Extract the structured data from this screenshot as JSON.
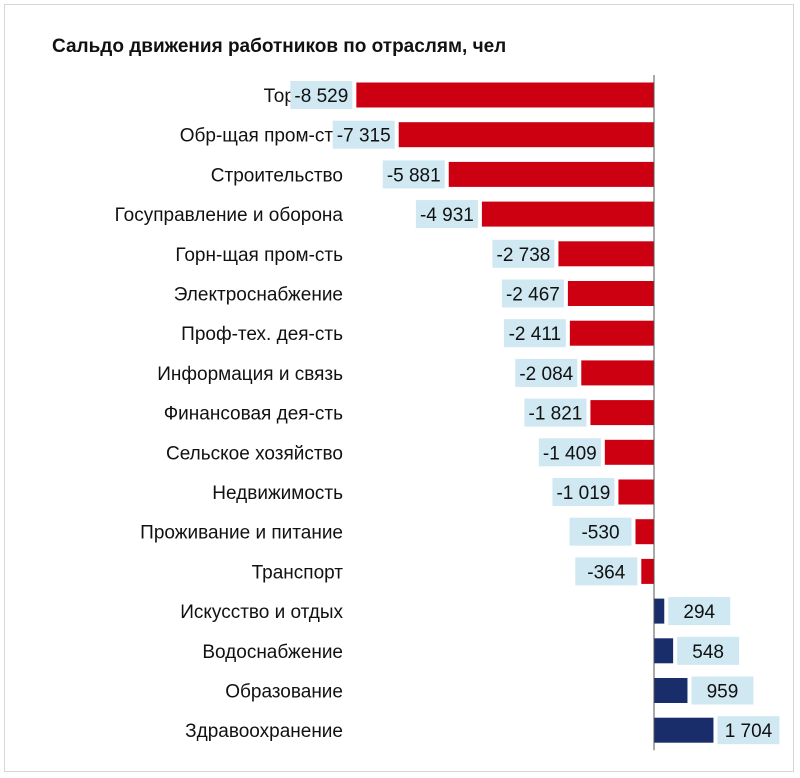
{
  "chart_data": {
    "type": "bar",
    "orientation": "horizontal",
    "title": "Сальдо движения работников по отраслям, чел",
    "categories": [
      "Торговля",
      "Обр-щая пром-сть",
      "Строительство",
      "Госуправление и оборона",
      "Горн-щая пром-сть",
      "Электроснабжение",
      "Проф-тех.  дея-сть",
      "Информация  и связь",
      "Финансовая дея-сть",
      "Сельское хозяйство",
      "Недвижимость",
      "Проживание  и питание",
      "Транспорт",
      "Искусство и отдых",
      "Водоснабжение",
      "Образование",
      "Здравоохранение"
    ],
    "values": [
      -8529,
      -7315,
      -5881,
      -4931,
      -2738,
      -2467,
      -2411,
      -2084,
      -1821,
      -1409,
      -1019,
      -530,
      -364,
      294,
      548,
      959,
      1704
    ],
    "labels": [
      "-8 529",
      "-7 315",
      "-5 881",
      "-4 931",
      "-2 738",
      "-2 467",
      "-2 411",
      "-2 084",
      "-1 821",
      "-1 409",
      "-1 019",
      "-530",
      "-364",
      "294",
      "548",
      "959",
      "1 704"
    ],
    "colors": {
      "negative": "#cc0011",
      "positive": "#1a2d6b",
      "label_bg": "#cfe8f1",
      "axis": "#555555"
    },
    "grid": false,
    "legend": "none"
  }
}
